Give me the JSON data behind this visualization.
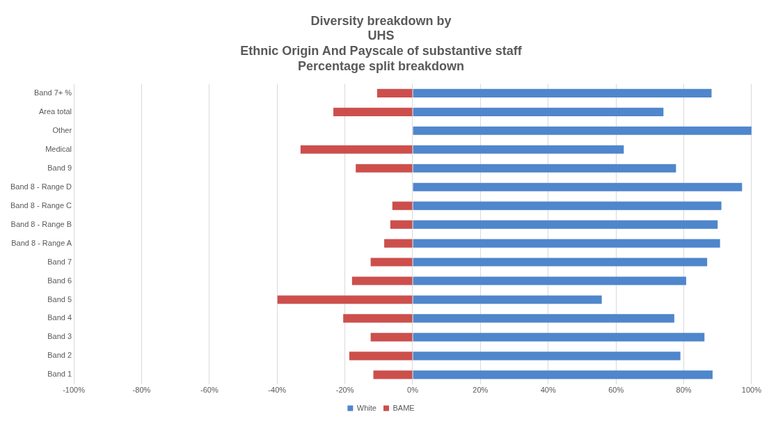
{
  "chart_data": {
    "type": "bar",
    "orientation": "horizontal",
    "stacked": true,
    "title": "Diversity breakdown by\nUHS\nEthnic Origin And Payscale of substantive staff\nPercentage split breakdown",
    "categories": [
      "Band 7+ %",
      "Area total",
      "Other",
      "Medical",
      "Band 9",
      "Band 8 - Range D",
      "Band 8 - Range C",
      "Band 8 - Range B",
      "Band 8 - Range A",
      "Band 7",
      "Band 6",
      "Band 5",
      "Band 4",
      "Band 3",
      "Band 2",
      "Band 1"
    ],
    "series": [
      {
        "name": "White",
        "color": "#4f86cc",
        "values": [
          88.2,
          74,
          100,
          62.3,
          77.7,
          97.2,
          91.1,
          90,
          90.7,
          86.9,
          80.7,
          55.8,
          77.2,
          86.1,
          79,
          88.5
        ]
      },
      {
        "name": "BAME",
        "color": "#cc4f4c",
        "values": [
          -10.5,
          -23.4,
          null,
          -33.1,
          -16.8,
          null,
          -6,
          -6.6,
          -8.4,
          -12.4,
          -17.9,
          -39.9,
          -20.5,
          -12.4,
          -18.7,
          -11.6
        ]
      }
    ],
    "xlim": [
      -100,
      100
    ],
    "xticks": [
      {
        "value": -100,
        "label": "-100%"
      },
      {
        "value": -80,
        "label": "-80%"
      },
      {
        "value": -60,
        "label": "-60%"
      },
      {
        "value": -40,
        "label": "-40%"
      },
      {
        "value": -20,
        "label": "-20%"
      },
      {
        "value": 0,
        "label": "0%"
      },
      {
        "value": 20,
        "label": "20%"
      },
      {
        "value": 40,
        "label": "40%"
      },
      {
        "value": 60,
        "label": "60%"
      },
      {
        "value": 80,
        "label": "80%"
      },
      {
        "value": 100,
        "label": "100%"
      }
    ],
    "grid": "x",
    "legend": "bottom"
  }
}
